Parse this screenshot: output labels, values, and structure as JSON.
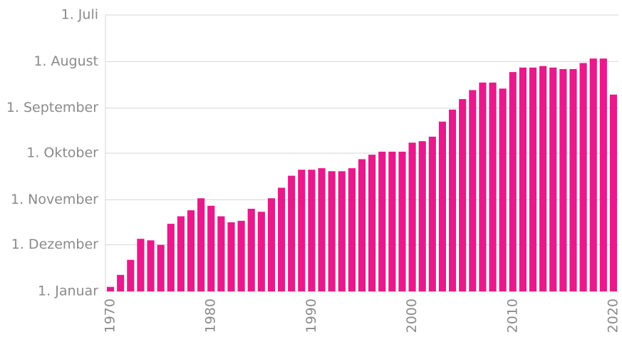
{
  "chart_data": {
    "type": "bar",
    "color": "#e8198b",
    "grid": true,
    "x": [
      1970,
      1971,
      1972,
      1973,
      1974,
      1975,
      1976,
      1977,
      1978,
      1979,
      1980,
      1981,
      1982,
      1983,
      1984,
      1985,
      1986,
      1987,
      1988,
      1989,
      1990,
      1991,
      1992,
      1993,
      1994,
      1995,
      1996,
      1997,
      1998,
      1999,
      2000,
      2001,
      2002,
      2003,
      2004,
      2005,
      2006,
      2007,
      2008,
      2009,
      2010,
      2011,
      2012,
      2013,
      2014,
      2015,
      2016,
      2017,
      2018,
      2019,
      2020
    ],
    "values": [
      363,
      355,
      345,
      331,
      332,
      335,
      321,
      316,
      312,
      304,
      309,
      316,
      320,
      319,
      311,
      313,
      304,
      297,
      289,
      285,
      285,
      284,
      286,
      286,
      284,
      278,
      275,
      273,
      273,
      273,
      267,
      266,
      263,
      253,
      245,
      238,
      232,
      227,
      227,
      231,
      220,
      217,
      217,
      216,
      217,
      218,
      218,
      214,
      211,
      211,
      235
    ],
    "xlim": [
      1969.5,
      2020.5
    ],
    "xticks": [
      1970,
      1980,
      1990,
      2000,
      2010,
      2020
    ],
    "ylim": [
      366,
      182
    ],
    "yticks": [
      {
        "value": 366,
        "label": "1. Januar"
      },
      {
        "value": 335,
        "label": "1. Dezember"
      },
      {
        "value": 305,
        "label": "1. November"
      },
      {
        "value": 274,
        "label": "1. Oktober"
      },
      {
        "value": 244,
        "label": "1. September"
      },
      {
        "value": 213,
        "label": "1. August"
      },
      {
        "value": 182,
        "label": "1. Juli"
      }
    ]
  }
}
